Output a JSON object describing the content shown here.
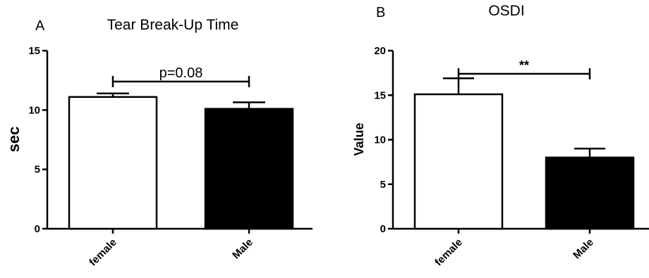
{
  "chart_data": [
    {
      "type": "bar",
      "panel_letter": "A",
      "title": "Tear Break-Up Time",
      "ylabel": "sec",
      "xlabel": "",
      "categories": [
        "female",
        "Male"
      ],
      "values": [
        11.1,
        10.1
      ],
      "errors": [
        0.3,
        0.55
      ],
      "bar_colors": [
        "#ffffff",
        "#000000"
      ],
      "ylim": [
        0,
        15
      ],
      "yticks": [
        0,
        5,
        10,
        15
      ],
      "ytick_labels": [
        "0",
        "5",
        "10",
        "15"
      ],
      "significance": {
        "label": "p=0.08",
        "y": 12.4,
        "from": 0,
        "to": 1
      },
      "grid": false
    },
    {
      "type": "bar",
      "panel_letter": "B",
      "title": "OSDI",
      "ylabel": "Value",
      "xlabel": "",
      "categories": [
        "female",
        "Male"
      ],
      "values": [
        15.1,
        8.0
      ],
      "errors": [
        1.8,
        1.0
      ],
      "bar_colors": [
        "#ffffff",
        "#000000"
      ],
      "ylim": [
        0,
        20
      ],
      "yticks": [
        0,
        5,
        10,
        15,
        20
      ],
      "ytick_labels": [
        "0",
        "5",
        "10",
        "15",
        "20"
      ],
      "significance": {
        "label": "**",
        "y": 17.4,
        "from": 0,
        "to": 1
      },
      "grid": false
    }
  ]
}
